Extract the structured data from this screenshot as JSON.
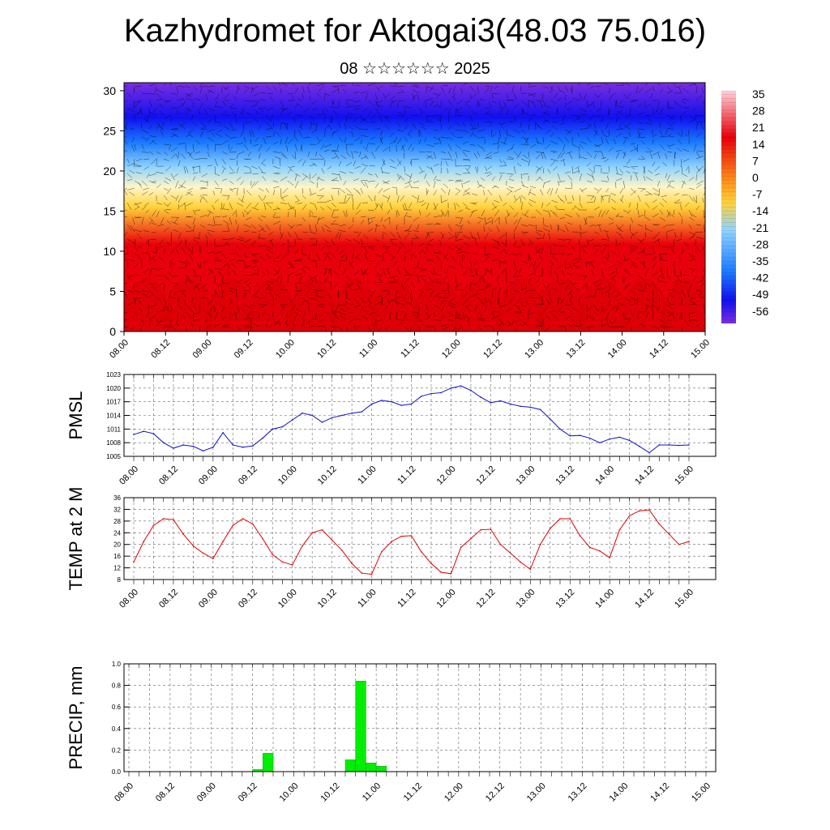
{
  "header": {
    "title": "Kazhydromet for Aktogai3(48.03 75.016)",
    "subtitle": "08 ☆☆☆☆☆☆ 2025"
  },
  "chart_data": [
    {
      "type": "heatmap",
      "name": "vertical-cross-section",
      "x_tick_labels": [
        "08.00",
        "08.12",
        "09.00",
        "09.12",
        "10.00",
        "10.12",
        "11.00",
        "11.12",
        "12.00",
        "12.12",
        "13.00",
        "13.12",
        "14.00",
        "14.12",
        "15.00"
      ],
      "y_ticks": [
        0,
        5,
        10,
        15,
        20,
        25,
        30
      ],
      "ylim": [
        0,
        31
      ],
      "colorbar_labels": [
        "35",
        "28",
        "21",
        "14",
        "7",
        "0",
        "-7",
        "-14",
        "-21",
        "-28",
        "-35",
        "-42",
        "-49",
        "-56"
      ],
      "colors": {
        "hot": "#e8000a",
        "warm": "#ffd23a",
        "pale": "#fff6c8",
        "cold_light": "#8fd3ff",
        "cold_mid": "#1a7aff",
        "cold_deep": "#1010ee",
        "top": "#7a2ee0"
      }
    },
    {
      "type": "line",
      "name": "pmsl",
      "ylabel": "PMSL",
      "x_tick_labels": [
        "08.00",
        "08.12",
        "09.00",
        "09.12",
        "10.00",
        "10.12",
        "11.00",
        "11.12",
        "12.00",
        "12.12",
        "13.00",
        "13.12",
        "14.00",
        "14.12",
        "15.00"
      ],
      "y_ticks": [
        "1005",
        "1008",
        "1011",
        "1014",
        "1017",
        "1020",
        "1023"
      ],
      "ylim": [
        1005,
        1023
      ],
      "color": "#1010cc",
      "values": [
        1009.8,
        1010.5,
        1010.0,
        1008.0,
        1006.8,
        1007.5,
        1007.2,
        1006.2,
        1007.0,
        1010.2,
        1007.5,
        1007.0,
        1007.3,
        1009.0,
        1011.0,
        1011.5,
        1013.0,
        1014.5,
        1014.0,
        1012.5,
        1013.5,
        1014.0,
        1014.5,
        1014.8,
        1016.5,
        1017.3,
        1017.0,
        1016.2,
        1016.5,
        1018.2,
        1018.8,
        1019.0,
        1020.0,
        1020.5,
        1019.5,
        1018.0,
        1016.8,
        1017.2,
        1016.5,
        1016.0,
        1015.8,
        1015.3,
        1013.2,
        1011.0,
        1009.5,
        1009.6,
        1009.0,
        1008.0,
        1008.8,
        1009.2,
        1008.5,
        1007.2,
        1005.8,
        1007.5,
        1007.5,
        1007.4,
        1007.5
      ]
    },
    {
      "type": "line",
      "name": "temp-2m",
      "ylabel": "TEMP at 2 M",
      "x_tick_labels": [
        "08.00",
        "08.12",
        "09.00",
        "09.12",
        "10.00",
        "10.12",
        "11.00",
        "11.12",
        "12.00",
        "12.12",
        "13.00",
        "13.12",
        "14.00",
        "14.12",
        "15.00"
      ],
      "y_ticks": [
        "8",
        "12",
        "16",
        "20",
        "24",
        "28",
        "32",
        "36"
      ],
      "ylim": [
        8,
        36
      ],
      "color": "#dd0000",
      "values": [
        14.0,
        21.0,
        26.5,
        28.8,
        28.5,
        23.5,
        19.5,
        17.0,
        15.2,
        21.0,
        26.5,
        28.8,
        27.0,
        22.0,
        16.5,
        14.0,
        13.0,
        19.5,
        24.0,
        25.0,
        21.5,
        18.0,
        13.5,
        10.2,
        9.8,
        17.5,
        21.0,
        22.8,
        23.0,
        17.5,
        13.5,
        10.5,
        10.0,
        19.0,
        22.0,
        25.0,
        25.2,
        20.0,
        17.0,
        14.0,
        11.5,
        20.0,
        25.5,
        28.8,
        28.8,
        23.0,
        19.0,
        17.8,
        15.5,
        25.0,
        29.8,
        31.5,
        31.8,
        27.0,
        23.5,
        20.0,
        21.0
      ]
    },
    {
      "type": "bar",
      "name": "precip",
      "ylabel": "PRECIP, mm",
      "x_tick_labels": [
        "08.00",
        "08.12",
        "09.00",
        "09.12",
        "10.00",
        "10.12",
        "11.00",
        "11.12",
        "12.00",
        "12.12",
        "13.00",
        "13.12",
        "14.00",
        "14.12",
        "15.00"
      ],
      "y_ticks": [
        "0.0",
        "0.2",
        "0.4",
        "0.6",
        "0.8",
        "1.0"
      ],
      "ylim": [
        0,
        1.0
      ],
      "color": "#00ee00",
      "bars": [
        {
          "step": 12.5,
          "value": 0.02
        },
        {
          "step": 13.5,
          "value": 0.17
        },
        {
          "step": 21.5,
          "value": 0.11
        },
        {
          "step": 22.5,
          "value": 0.84
        },
        {
          "step": 23.5,
          "value": 0.08
        },
        {
          "step": 24.5,
          "value": 0.05
        }
      ]
    }
  ]
}
